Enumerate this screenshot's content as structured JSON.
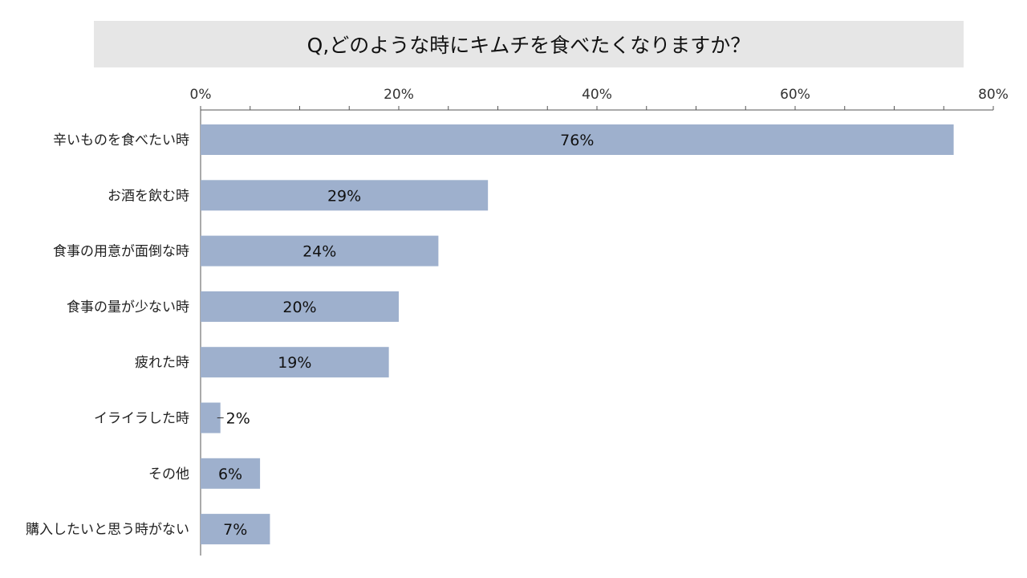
{
  "chart_data": {
    "type": "bar",
    "orientation": "horizontal",
    "title": "Q,どのような時にキムチを食べたくなりますか？",
    "categories": [
      "辛いものを食べたい時",
      "お酒を飲む時",
      "食事の用意が面倒な時",
      "食事の量が少ない時",
      "疲れた時",
      "イライラした時",
      "その他",
      "購入したいと思う時がない"
    ],
    "values": [
      76,
      29,
      24,
      20,
      19,
      2,
      6,
      7
    ],
    "value_labels": [
      "76%",
      "29%",
      "24%",
      "20%",
      "19%",
      "2%",
      "6%",
      "7%"
    ],
    "xlim": [
      0,
      80
    ],
    "x_ticks": [
      0,
      20,
      40,
      60,
      80
    ],
    "x_tick_labels": [
      "0%",
      "20%",
      "40%",
      "60%",
      "80%"
    ],
    "x_axis_position": "top",
    "grid": false,
    "bar_color": "#9eb0cd"
  }
}
